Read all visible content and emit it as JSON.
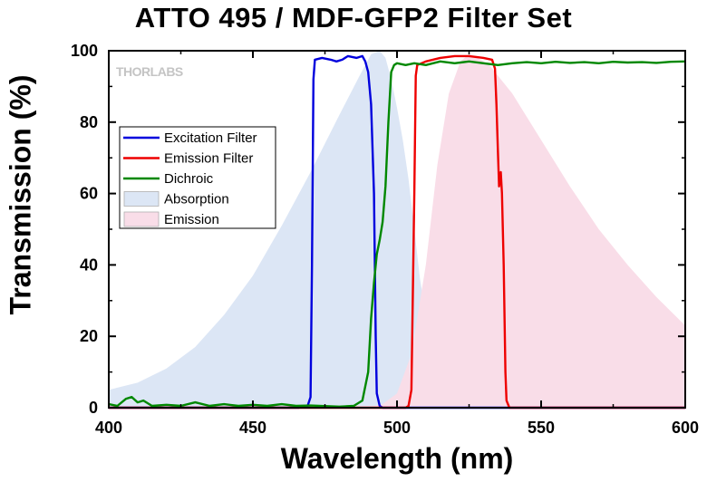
{
  "chart_data": {
    "type": "line",
    "title": "ATTO 495 / MDF-GFP2 Filter Set",
    "xlabel": "Wavelength (nm)",
    "ylabel": "Transmission (%)",
    "xlim": [
      400,
      600
    ],
    "ylim": [
      0,
      100
    ],
    "x_ticks": [
      400,
      450,
      500,
      550,
      600
    ],
    "y_ticks": [
      0,
      20,
      40,
      60,
      80,
      100
    ],
    "grid": false,
    "legend_position": "upper-left",
    "watermark": "THORLABS",
    "series": [
      {
        "name": "Excitation Filter",
        "kind": "line",
        "color": "#0000dd",
        "points": [
          [
            400,
            0
          ],
          [
            466,
            0
          ],
          [
            469,
            0.5
          ],
          [
            470,
            3
          ],
          [
            470.5,
            40
          ],
          [
            471,
            92
          ],
          [
            471.5,
            97.5
          ],
          [
            474,
            98
          ],
          [
            477,
            97.5
          ],
          [
            479,
            97
          ],
          [
            481,
            97.5
          ],
          [
            483,
            98.5
          ],
          [
            486,
            98
          ],
          [
            488,
            98.5
          ],
          [
            489,
            97
          ],
          [
            490,
            94
          ],
          [
            491,
            85
          ],
          [
            492,
            60
          ],
          [
            492.6,
            20
          ],
          [
            493,
            4
          ],
          [
            494,
            0.5
          ],
          [
            495,
            0
          ],
          [
            600,
            0
          ]
        ]
      },
      {
        "name": "Emission Filter",
        "kind": "line",
        "color": "#ee0000",
        "points": [
          [
            400,
            0
          ],
          [
            503,
            0
          ],
          [
            504,
            0.5
          ],
          [
            505,
            5
          ],
          [
            506,
            60
          ],
          [
            506.5,
            93
          ],
          [
            507,
            96
          ],
          [
            510,
            97
          ],
          [
            515,
            98
          ],
          [
            520,
            98.5
          ],
          [
            525,
            98.5
          ],
          [
            530,
            98
          ],
          [
            533,
            97.5
          ],
          [
            534,
            95
          ],
          [
            534.5,
            85
          ],
          [
            535,
            72
          ],
          [
            535.4,
            62
          ],
          [
            536,
            66
          ],
          [
            536.4,
            60
          ],
          [
            537,
            40
          ],
          [
            537.6,
            10
          ],
          [
            538,
            2
          ],
          [
            539,
            0
          ],
          [
            600,
            0
          ]
        ]
      },
      {
        "name": "Dichroic",
        "kind": "line",
        "color": "#008800",
        "points": [
          [
            400,
            1
          ],
          [
            403,
            0.5
          ],
          [
            406,
            2.5
          ],
          [
            408,
            3
          ],
          [
            410,
            1.5
          ],
          [
            412,
            2
          ],
          [
            415,
            0.5
          ],
          [
            420,
            0.8
          ],
          [
            425,
            0.5
          ],
          [
            430,
            1.5
          ],
          [
            435,
            0.5
          ],
          [
            440,
            1
          ],
          [
            445,
            0.5
          ],
          [
            450,
            0.8
          ],
          [
            455,
            0.5
          ],
          [
            460,
            1
          ],
          [
            465,
            0.5
          ],
          [
            470,
            0.6
          ],
          [
            480,
            0.3
          ],
          [
            485,
            0.5
          ],
          [
            488,
            2
          ],
          [
            490,
            10
          ],
          [
            491,
            25
          ],
          [
            492,
            35
          ],
          [
            493,
            43
          ],
          [
            494,
            47
          ],
          [
            495,
            52
          ],
          [
            496,
            62
          ],
          [
            497,
            80
          ],
          [
            498,
            94
          ],
          [
            499,
            96
          ],
          [
            500,
            96.5
          ],
          [
            503,
            96
          ],
          [
            506,
            96.5
          ],
          [
            510,
            96
          ],
          [
            515,
            97
          ],
          [
            520,
            96.5
          ],
          [
            525,
            97
          ],
          [
            530,
            96.5
          ],
          [
            535,
            96
          ],
          [
            540,
            96.5
          ],
          [
            545,
            96.8
          ],
          [
            550,
            96.5
          ],
          [
            555,
            96.9
          ],
          [
            560,
            96.6
          ],
          [
            565,
            96.8
          ],
          [
            570,
            96.5
          ],
          [
            575,
            96.9
          ],
          [
            580,
            96.7
          ],
          [
            585,
            96.8
          ],
          [
            590,
            96.6
          ],
          [
            595,
            96.9
          ],
          [
            600,
            97
          ]
        ]
      },
      {
        "name": "Absorption",
        "kind": "area",
        "color": "#dce6f5",
        "points": [
          [
            400,
            5
          ],
          [
            410,
            7
          ],
          [
            420,
            11
          ],
          [
            430,
            17
          ],
          [
            440,
            26
          ],
          [
            450,
            37
          ],
          [
            460,
            51
          ],
          [
            470,
            66
          ],
          [
            480,
            82
          ],
          [
            487,
            93
          ],
          [
            491,
            99
          ],
          [
            494,
            100
          ],
          [
            496,
            98
          ],
          [
            498,
            92
          ],
          [
            500,
            84
          ],
          [
            502,
            75
          ],
          [
            504,
            64
          ],
          [
            506,
            50
          ],
          [
            508,
            36
          ],
          [
            510,
            26
          ],
          [
            512,
            18
          ],
          [
            515,
            11
          ],
          [
            520,
            5
          ],
          [
            525,
            2
          ],
          [
            530,
            0.5
          ],
          [
            535,
            0
          ]
        ]
      },
      {
        "name": "Emission",
        "kind": "area",
        "color": "#f9dde8",
        "points": [
          [
            490,
            0
          ],
          [
            495,
            1
          ],
          [
            500,
            4
          ],
          [
            505,
            15
          ],
          [
            510,
            40
          ],
          [
            514,
            68
          ],
          [
            518,
            88
          ],
          [
            522,
            97
          ],
          [
            525,
            99
          ],
          [
            528,
            98
          ],
          [
            532,
            96
          ],
          [
            540,
            88
          ],
          [
            550,
            75
          ],
          [
            560,
            62
          ],
          [
            570,
            50
          ],
          [
            580,
            40
          ],
          [
            590,
            31
          ],
          [
            600,
            23
          ]
        ]
      }
    ]
  }
}
